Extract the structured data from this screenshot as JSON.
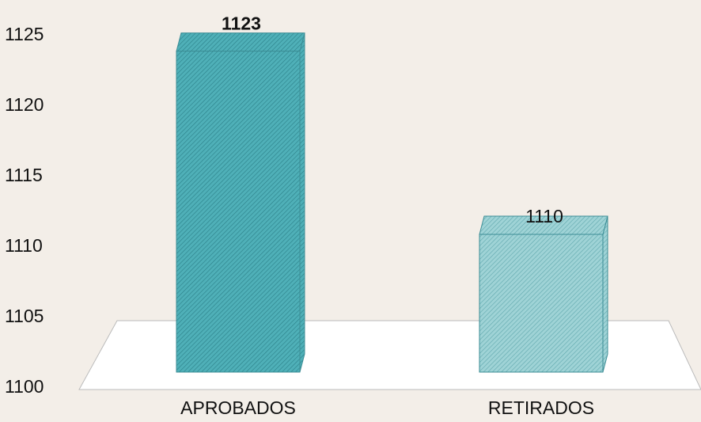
{
  "chart_data": {
    "type": "bar3d",
    "categories": [
      "APROBADOS",
      "RETIRADOS"
    ],
    "values": [
      1123,
      1110
    ],
    "colors": [
      "#4fb0b8",
      "#9fd3d6"
    ],
    "ylim": [
      1100,
      1125
    ],
    "yticks": [
      1100,
      1105,
      1110,
      1115,
      1120,
      1125
    ]
  }
}
